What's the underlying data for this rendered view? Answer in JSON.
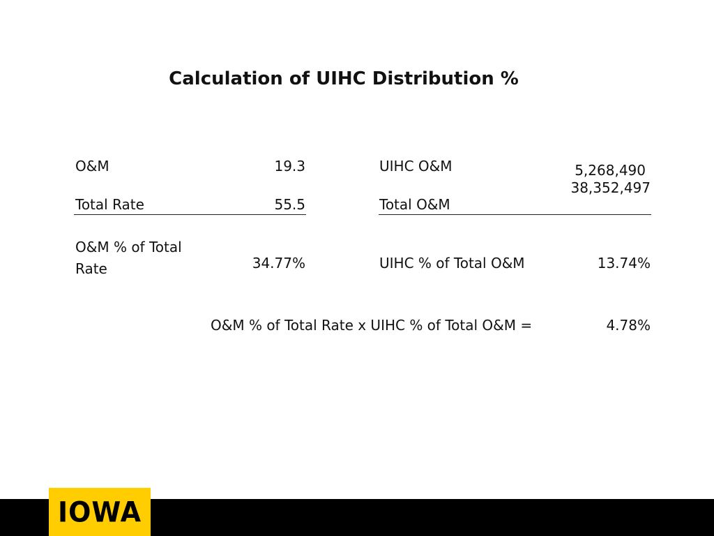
{
  "slide": {
    "title": "Calculation of UIHC Distribution %"
  },
  "left_block": {
    "row1_label": "O&M",
    "row1_value": "19.3",
    "row2_label": "Total Rate",
    "row2_value": "55.5",
    "result_label_line1": "O&M % of Total",
    "result_label_line2": "Rate",
    "result_value": "34.77%"
  },
  "right_block": {
    "row1_label": "UIHC O&M",
    "row1_value": "5,268,490",
    "row2_label": "Total O&M",
    "row2_value": "38,352,497",
    "result_label": "UIHC % of Total O&M",
    "result_value": "13.74%"
  },
  "final": {
    "label": "O&M % of Total Rate x UIHC % of Total O&M =",
    "value": "4.78%"
  },
  "footer": {
    "logo_text": "IOWA",
    "bar_color": "#000000",
    "logo_color": "#FFCD00"
  }
}
